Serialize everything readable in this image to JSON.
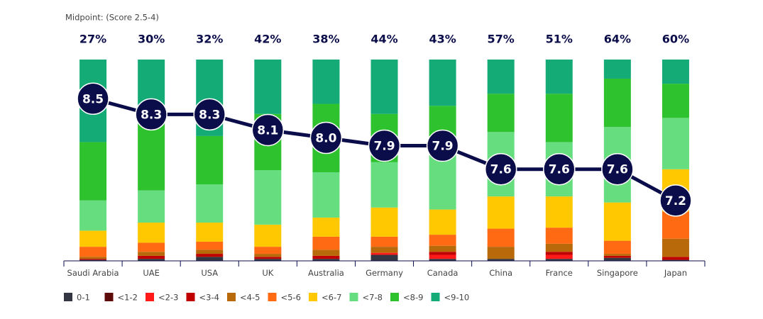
{
  "chart_data": {
    "type": "stacked-bar-line",
    "subtitle": "Midpoint: (Score 2.5-4)",
    "categories": [
      "Saudi Arabia",
      "UAE",
      "USA",
      "UK",
      "Australia",
      "Germany",
      "Canada",
      "China",
      "France",
      "Singapore",
      "Japan"
    ],
    "ylim": [
      0,
      100
    ],
    "series": [
      {
        "name": "0-1",
        "color": "#343741",
        "values": [
          0.5,
          1,
          2,
          1,
          1,
          3,
          1,
          1,
          1,
          1.5,
          0.5
        ]
      },
      {
        "name": "<1-2",
        "color": "#5c0a0a",
        "values": [
          0,
          0,
          0,
          0,
          0,
          0,
          0,
          0,
          0,
          0,
          0
        ]
      },
      {
        "name": "<2-3",
        "color": "#ff1a1a",
        "values": [
          0,
          0,
          0,
          0,
          0,
          1,
          2,
          0,
          2,
          0,
          0
        ]
      },
      {
        "name": "<3-4",
        "color": "#c00000",
        "values": [
          0.5,
          1.5,
          1.5,
          1,
          1.5,
          0,
          1.5,
          0,
          1.5,
          1,
          1.5
        ]
      },
      {
        "name": "<4-5",
        "color": "#b8690a",
        "values": [
          1,
          2,
          2,
          1.5,
          3,
          3,
          3,
          6,
          4,
          1,
          9
        ]
      },
      {
        "name": "<5-6",
        "color": "#ff6a13",
        "values": [
          5,
          4.5,
          4,
          3.5,
          6.5,
          5,
          5.5,
          9,
          8,
          6.5,
          13.5
        ]
      },
      {
        "name": "<6-7",
        "color": "#ffc800",
        "values": [
          8,
          10,
          9.5,
          11,
          9.5,
          14.5,
          12.5,
          16,
          15.5,
          19,
          21
        ]
      },
      {
        "name": "<7-8",
        "color": "#66dd7f",
        "values": [
          15,
          16,
          19,
          27,
          22.5,
          22.5,
          29,
          32,
          27,
          37.5,
          25.5
        ]
      },
      {
        "name": "<8-9",
        "color": "#2fc22f",
        "values": [
          29,
          33,
          24,
          28,
          34,
          24,
          22.5,
          19,
          24,
          24,
          17
        ]
      },
      {
        "name": "<9-10",
        "color": "#15ab77",
        "values": [
          41,
          32,
          38,
          27,
          22,
          27,
          23,
          17,
          17,
          9.5,
          12
        ]
      }
    ],
    "top_box": {
      "values": [
        27,
        30,
        32,
        42,
        38,
        44,
        43,
        57,
        51,
        64,
        60
      ],
      "value_labels": [
        "27%",
        "30%",
        "32%",
        "42%",
        "38%",
        "44%",
        "43%",
        "57%",
        "51%",
        "64%",
        "60%"
      ]
    },
    "line": {
      "axis": "y2",
      "color": "#0b0d4a",
      "values": [
        8.5,
        8.3,
        8.3,
        8.1,
        8.0,
        7.9,
        7.9,
        7.6,
        7.6,
        7.6,
        7.2
      ],
      "value_labels": [
        "8.5",
        "8.3",
        "8.3",
        "8.1",
        "8.0",
        "7.9",
        "7.9",
        "7.6",
        "7.6",
        "7.6",
        "7.2"
      ]
    },
    "y2lim": [
      6.43,
      9.0
    ]
  }
}
